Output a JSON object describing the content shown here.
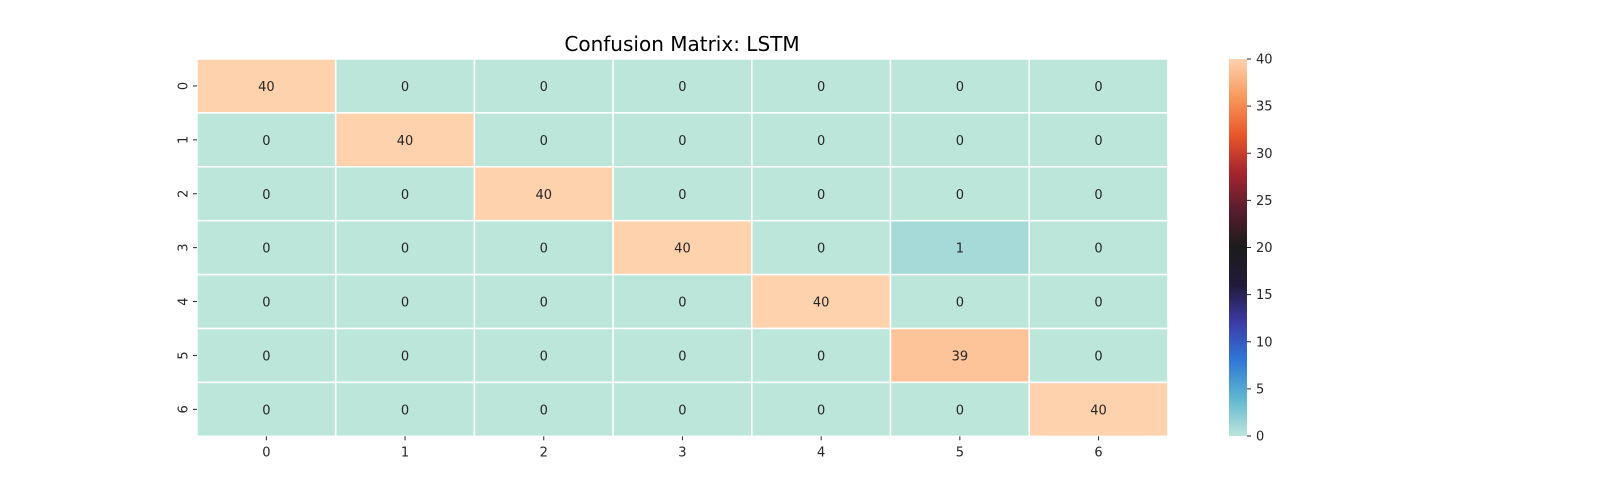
{
  "chart_data": {
    "type": "heatmap",
    "title": "Confusion Matrix: LSTM",
    "x_categories": [
      "0",
      "1",
      "2",
      "3",
      "4",
      "5",
      "6"
    ],
    "y_categories": [
      "0",
      "1",
      "2",
      "3",
      "4",
      "5",
      "6"
    ],
    "values": [
      [
        40,
        0,
        0,
        0,
        0,
        0,
        0
      ],
      [
        0,
        40,
        0,
        0,
        0,
        0,
        0
      ],
      [
        0,
        0,
        40,
        0,
        0,
        0,
        0
      ],
      [
        0,
        0,
        0,
        40,
        0,
        1,
        0
      ],
      [
        0,
        0,
        0,
        0,
        40,
        0,
        0
      ],
      [
        0,
        0,
        0,
        0,
        0,
        39,
        0
      ],
      [
        0,
        0,
        0,
        0,
        0,
        0,
        40
      ]
    ],
    "colorbar": {
      "range": [
        0,
        40
      ],
      "ticks": [
        "0",
        "5",
        "10",
        "15",
        "20",
        "25",
        "30",
        "35",
        "40"
      ],
      "colormap": "icefire",
      "colors": [
        "#bde6db",
        "#5fb6d0",
        "#2f78d6",
        "#3c3ca8",
        "#221a3a",
        "#1b1b1b",
        "#5a1d2f",
        "#a6252e",
        "#e9582a",
        "#f79a5c",
        "#ffd2ae"
      ]
    },
    "grid": false,
    "annotated": true
  }
}
